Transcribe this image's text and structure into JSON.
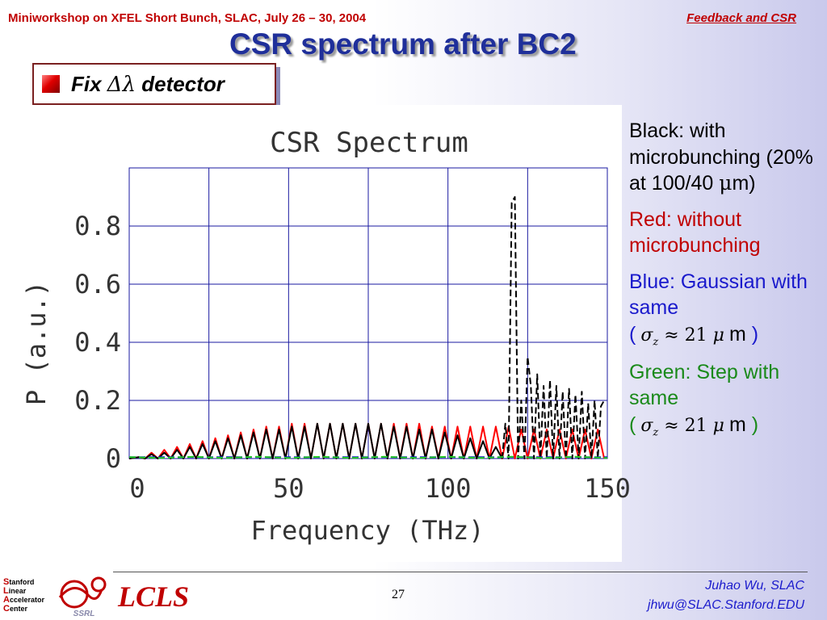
{
  "header": {
    "left": "Miniworkshop on XFEL Short Bunch, SLAC, July 26 – 30, 2004",
    "right": "Feedback and CSR"
  },
  "slide": {
    "title": "CSR spectrum after BC2",
    "bullet_prefix": "Fix ",
    "bullet_symbol": "Δλ",
    "bullet_suffix": " detector"
  },
  "legend": {
    "black": {
      "text": "Black: with microbunching (20% at 100/40 ",
      "mu": "μ",
      "tail": "m)"
    },
    "red": {
      "text": "Red: without microbunching"
    },
    "blue": {
      "text": "Blue: Gaussian with same",
      "open": "(",
      "math_sigma": "σ",
      "math_sub": "z",
      "math_rel": "≈ 21",
      "math_mu": "μ",
      "unit": "m",
      "close": ")"
    },
    "green": {
      "text": "Green: Step with same",
      "open": "(",
      "math_sigma": "σ",
      "math_sub": "z",
      "math_rel": "≈ 21",
      "math_mu": "μ",
      "unit": "m",
      "close": ")"
    }
  },
  "footer": {
    "page": "27",
    "author": "Juhao Wu, SLAC",
    "email": "jhwu@SLAC.Stanford.EDU",
    "lcls": "LCLS",
    "slac_logo": [
      "S",
      "tanford",
      "L",
      "inear",
      "A",
      "ccelerator",
      "C",
      "enter"
    ],
    "ssrl": "SSRL"
  },
  "colors": {
    "header_red": "#c00000",
    "title_blue": "#1f2f9a",
    "black_series": "#000000",
    "red_series": "#ff0000",
    "blue_series": "#1a1acc",
    "green_series": "#22cc22",
    "grid": "#1a1aa0"
  },
  "chart_data": {
    "type": "line",
    "title": "CSR Spectrum",
    "xlabel": "Frequency (THz)",
    "ylabel": "P (a.u.)",
    "xlim": [
      0,
      150
    ],
    "ylim": [
      0,
      1.0
    ],
    "xticks": [
      0,
      50,
      100,
      150
    ],
    "yticks": [
      0,
      0.2,
      0.4,
      0.6,
      0.8
    ],
    "xtick_labels": [
      "0",
      "50",
      "100",
      "150"
    ],
    "ytick_labels": [
      "0",
      "0.2",
      "0.4",
      "0.6",
      "0.8"
    ],
    "grid": true,
    "series": [
      {
        "color": "#ff0000",
        "style": "solid",
        "x": [
          0,
          3,
          5,
          7,
          9,
          11,
          13,
          15,
          17,
          19,
          21,
          23,
          25,
          27,
          29,
          31,
          33,
          35,
          37,
          39,
          41,
          43,
          45,
          47,
          49,
          51,
          53,
          55,
          57,
          59,
          61,
          63,
          65,
          67,
          69,
          71,
          73,
          75,
          77,
          79,
          81,
          83,
          85,
          87,
          89,
          91,
          93,
          95,
          97,
          99,
          101,
          103,
          105,
          107,
          109,
          111,
          113,
          115,
          117,
          119,
          121,
          123,
          125,
          127,
          129,
          131,
          133,
          135,
          137,
          139,
          141,
          143,
          145,
          147,
          149
        ],
        "y": [
          0.0,
          0.005,
          0.0,
          0.02,
          0.0,
          0.03,
          0.0,
          0.04,
          0.0,
          0.05,
          0.0,
          0.06,
          0.0,
          0.07,
          0.0,
          0.08,
          0.0,
          0.09,
          0.0,
          0.1,
          0.0,
          0.11,
          0.0,
          0.11,
          0.0,
          0.12,
          0.0,
          0.12,
          0.0,
          0.12,
          0.0,
          0.12,
          0.0,
          0.12,
          0.0,
          0.12,
          0.0,
          0.12,
          0.0,
          0.12,
          0.0,
          0.12,
          0.0,
          0.12,
          0.0,
          0.12,
          0.0,
          0.11,
          0.0,
          0.11,
          0.0,
          0.11,
          0.0,
          0.11,
          0.0,
          0.11,
          0.0,
          0.11,
          0.0,
          0.11,
          0.0,
          0.1,
          0.0,
          0.1,
          0.0,
          0.1,
          0.0,
          0.1,
          0.0,
          0.1,
          0.0,
          0.1,
          0.0,
          0.1,
          0.0
        ]
      },
      {
        "color": "#000000",
        "style": "solid",
        "x": [
          0,
          3,
          5,
          7,
          9,
          11,
          13,
          15,
          17,
          19,
          21,
          23,
          25,
          27,
          29,
          31,
          33,
          35,
          37,
          39,
          41,
          43,
          45,
          47,
          49,
          51,
          53,
          55,
          57,
          59,
          61,
          63,
          65,
          67,
          69,
          71,
          73,
          75,
          77,
          79,
          81,
          83,
          85,
          87,
          89,
          91,
          93,
          95,
          97,
          99,
          101,
          103,
          105,
          107,
          109,
          111,
          113,
          115,
          117
        ],
        "y": [
          0.0,
          0.005,
          0.0,
          0.015,
          0.0,
          0.02,
          0.0,
          0.03,
          0.0,
          0.04,
          0.0,
          0.05,
          0.0,
          0.06,
          0.0,
          0.07,
          0.0,
          0.08,
          0.0,
          0.09,
          0.0,
          0.1,
          0.0,
          0.1,
          0.0,
          0.11,
          0.0,
          0.11,
          0.0,
          0.12,
          0.0,
          0.12,
          0.0,
          0.12,
          0.0,
          0.12,
          0.0,
          0.12,
          0.0,
          0.12,
          0.0,
          0.11,
          0.0,
          0.11,
          0.0,
          0.1,
          0.0,
          0.1,
          0.0,
          0.09,
          0.0,
          0.08,
          0.0,
          0.07,
          0.0,
          0.06,
          0.0,
          0.04,
          0.0
        ]
      },
      {
        "color": "#000000",
        "style": "dashed",
        "x": [
          117,
          118,
          119,
          120,
          121,
          122,
          123,
          124,
          125,
          126,
          127,
          128,
          129,
          130,
          131,
          132,
          133,
          134,
          135,
          136,
          137,
          138,
          139,
          140,
          141,
          142,
          143,
          144,
          145,
          146,
          147,
          148,
          149
        ],
        "y": [
          0.0,
          0.12,
          0.0,
          0.88,
          0.9,
          0.0,
          0.2,
          0.0,
          0.35,
          0.25,
          0.0,
          0.29,
          0.0,
          0.25,
          0.0,
          0.27,
          0.0,
          0.25,
          0.0,
          0.23,
          0.0,
          0.24,
          0.0,
          0.22,
          0.0,
          0.23,
          0.0,
          0.19,
          0.0,
          0.2,
          0.0,
          0.18,
          0.2
        ]
      },
      {
        "color": "#1a1acc",
        "style": "dashed",
        "x": [
          0,
          150
        ],
        "y": [
          0.005,
          0.005
        ]
      },
      {
        "color": "#22cc22",
        "style": "dashed",
        "x": [
          0,
          10,
          20,
          30,
          40,
          50,
          60,
          70,
          80,
          90,
          100,
          110,
          120,
          130,
          140,
          150
        ],
        "y": [
          0.005,
          0.002,
          0.006,
          0.002,
          0.006,
          0.002,
          0.006,
          0.002,
          0.006,
          0.002,
          0.006,
          0.002,
          0.006,
          0.002,
          0.006,
          0.002
        ]
      }
    ]
  }
}
